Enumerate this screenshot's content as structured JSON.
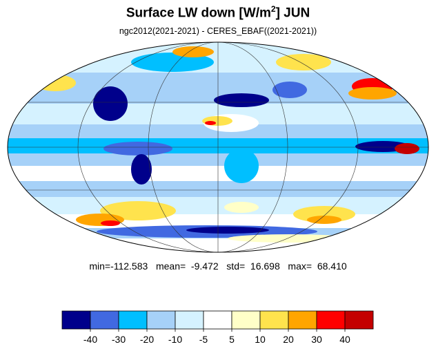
{
  "title": {
    "main": "Surface LW down [W/m",
    "superscript": "2",
    "suffix": "]  JUN"
  },
  "subtitle": "ngc2012(2021-2021) - CERES_EBAF((2021-2021))",
  "stats": {
    "text": "min=-112.583   mean=  -9.472   std=  16.698   max=  68.410"
  },
  "projection": "mollweide",
  "colorbar": {
    "colors": [
      "#00008b",
      "#4169e1",
      "#00bfff",
      "#a6d1f8",
      "#d5f2ff",
      "#ffffff",
      "#ffffc8",
      "#ffe34d",
      "#ffa500",
      "#ff0000",
      "#c40000"
    ],
    "tick_labels": [
      "-40",
      "-30",
      "-20",
      "-10",
      "-5",
      "5",
      "10",
      "20",
      "30",
      "40"
    ]
  }
}
